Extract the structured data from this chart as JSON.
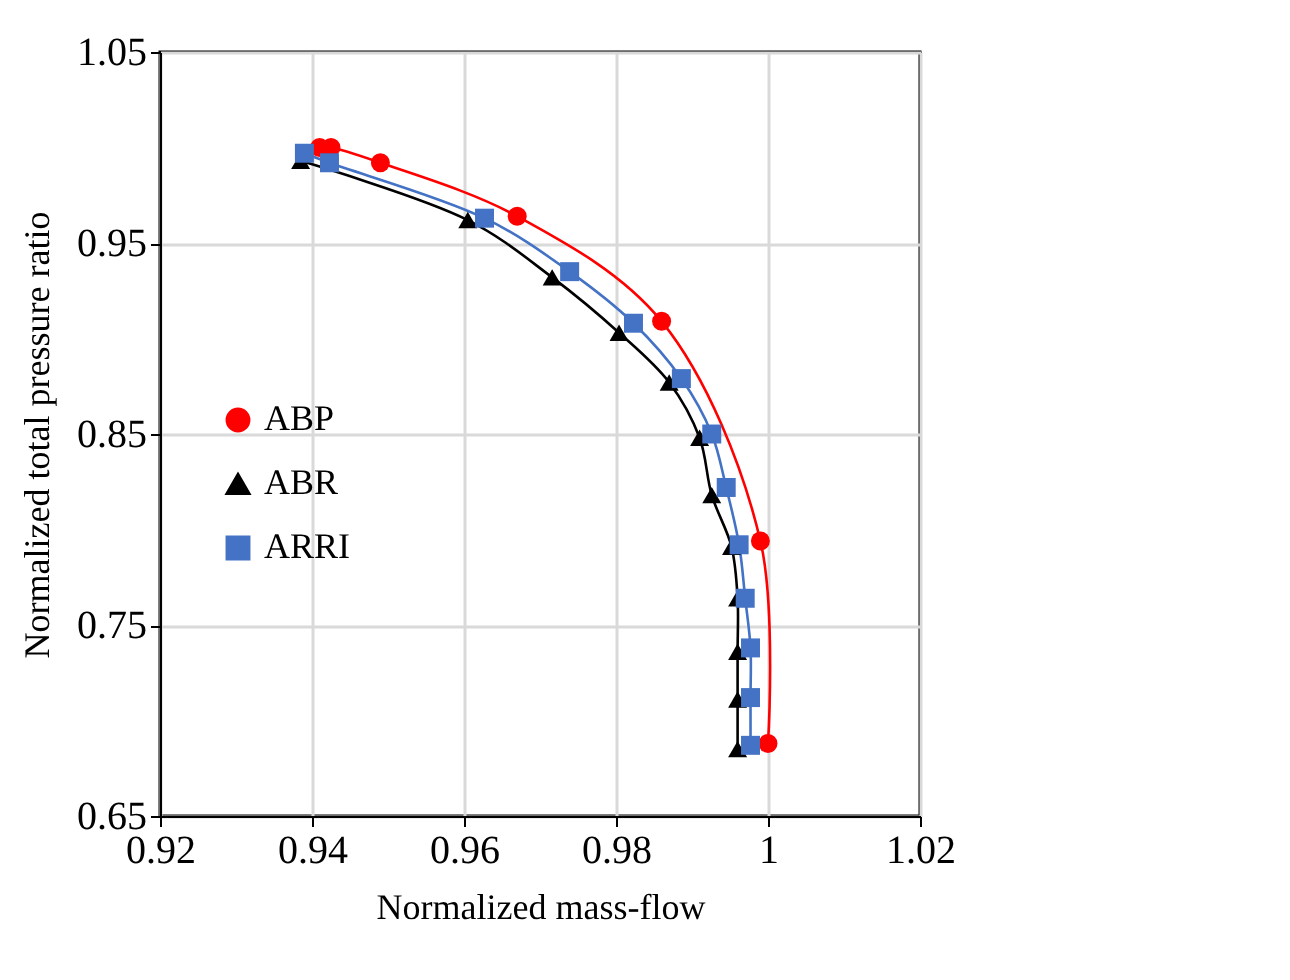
{
  "chart_data": {
    "type": "line",
    "xlabel": "Normalized mass-flow",
    "ylabel": "Normalized total pressure ratio",
    "xlim": [
      0.92,
      1.02
    ],
    "xticks": [
      0.92,
      0.94,
      0.96,
      0.98,
      1,
      1.02
    ],
    "ylim": [
      0.65,
      1.05
    ],
    "yticks": [
      0.65,
      0.75,
      0.85,
      0.95,
      1.05
    ],
    "grid": true,
    "legend": "left",
    "series": [
      {
        "name": "ABP",
        "color": "#ff0000",
        "marker": "circle",
        "x": [
          0.941,
          0.9425,
          0.949,
          0.967,
          0.986,
          0.999,
          1.0
        ],
        "values": [
          1.0,
          1.0,
          0.992,
          0.964,
          0.909,
          0.794,
          0.688
        ]
      },
      {
        "name": "ABR",
        "color": "#000000",
        "marker": "triangle",
        "x": [
          0.9385,
          0.9605,
          0.9716,
          0.9804,
          0.987,
          0.991,
          0.9926,
          0.9952,
          0.996,
          0.996,
          0.996,
          0.996
        ],
        "values": [
          0.993,
          0.962,
          0.932,
          0.903,
          0.877,
          0.848,
          0.818,
          0.791,
          0.764,
          0.736,
          0.711,
          0.685
        ]
      },
      {
        "name": "ARRI",
        "color": "#4472c4",
        "marker": "square",
        "x": [
          0.939,
          0.9423,
          0.9627,
          0.9739,
          0.9823,
          0.9886,
          0.9926,
          0.9945,
          0.9962,
          0.997,
          0.9977,
          0.9977,
          0.9977
        ],
        "values": [
          0.997,
          0.992,
          0.963,
          0.935,
          0.908,
          0.879,
          0.85,
          0.822,
          0.792,
          0.764,
          0.738,
          0.712,
          0.687
        ]
      }
    ]
  }
}
